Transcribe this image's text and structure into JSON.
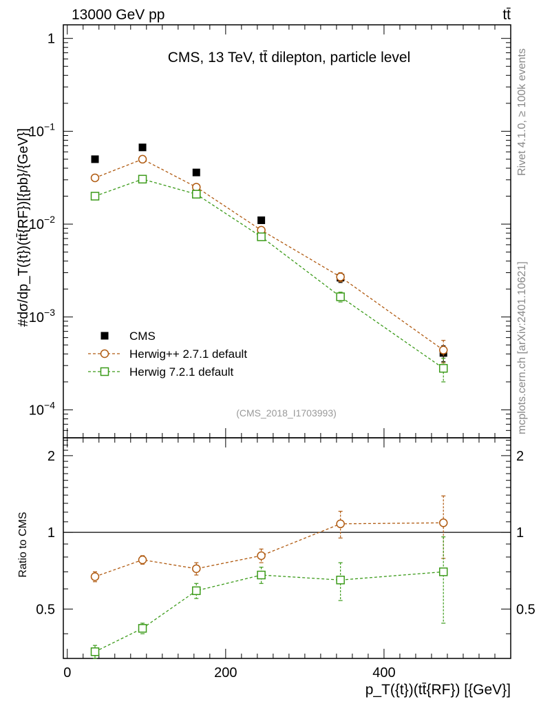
{
  "header": {
    "beam": "13000 GeV pp",
    "process": "tt̄"
  },
  "side_labels": {
    "rivet": "Rivet 4.1.0, ≥ 100k events",
    "site": "mcplots.cern.ch [arXiv:2401.10621]"
  },
  "chart_data": {
    "type": "line",
    "title": "CMS, 13 TeV, tt̄ dilepton, particle level",
    "analysis_id": "(CMS_2018_I1703993)",
    "ylabel_main": "#dσ/dp_T({t})(tt̄{RF})[{pb}/{GeV}]",
    "ylabel_ratio": "Ratio to CMS",
    "xlabel": "p_T({t})(tt̄{RF}) [{GeV}]",
    "x_range": [
      -5,
      560
    ],
    "y_range_main": [
      5e-05,
      1.4
    ],
    "y_range_ratio": [
      0.32,
      2.35
    ],
    "y_scale_main": "log",
    "y_scale_ratio": "log",
    "x_ticks": [
      0,
      200,
      400
    ],
    "y_ticks_main": [
      {
        "value": 1,
        "label": "1"
      },
      {
        "value": 0.1,
        "label": "10^-1"
      },
      {
        "value": 0.01,
        "label": "10^-2"
      },
      {
        "value": 0.001,
        "label": "10^-3"
      },
      {
        "value": 0.0001,
        "label": "10^-4"
      }
    ],
    "y_ticks_ratio": [
      {
        "value": 0.5,
        "label": "0.5"
      },
      {
        "value": 1,
        "label": "1"
      },
      {
        "value": 2,
        "label": "2"
      }
    ],
    "legend_position": "bottom-left",
    "series": [
      {
        "name": "CMS",
        "style": "data",
        "color": "#000000",
        "x": [
          35,
          95,
          163,
          245,
          345,
          475
        ],
        "values": [
          0.05,
          0.067,
          0.036,
          0.011,
          0.00265,
          0.00041
        ],
        "errors": [
          0,
          0,
          0,
          0,
          0.0003,
          8e-05
        ]
      },
      {
        "name": "Herwig++ 2.7.1 default",
        "style": "circle",
        "color": "#b05a10",
        "x": [
          35,
          95,
          163,
          245,
          345,
          475
        ],
        "values": [
          0.0315,
          0.05,
          0.025,
          0.0086,
          0.0027,
          0.00044
        ],
        "errors": [
          0.0015,
          0.002,
          0.0012,
          0.0005,
          0.0003,
          0.00012
        ],
        "ratio": [
          0.67,
          0.78,
          0.72,
          0.81,
          1.08,
          1.09
        ],
        "ratio_errors": [
          0.03,
          0.03,
          0.04,
          0.05,
          0.13,
          0.3
        ]
      },
      {
        "name": "Herwig 7.2.1 default",
        "style": "square",
        "color": "#3a9a18",
        "x": [
          35,
          95,
          163,
          245,
          345,
          475
        ],
        "values": [
          0.02,
          0.0305,
          0.021,
          0.0073,
          0.00165,
          0.00028
        ],
        "errors": [
          0.001,
          0.0015,
          0.001,
          0.0004,
          0.0002,
          8e-05
        ],
        "ratio": [
          0.34,
          0.42,
          0.59,
          0.68,
          0.65,
          0.7
        ],
        "ratio_errors": [
          0.02,
          0.02,
          0.04,
          0.05,
          0.11,
          0.26
        ]
      }
    ]
  }
}
